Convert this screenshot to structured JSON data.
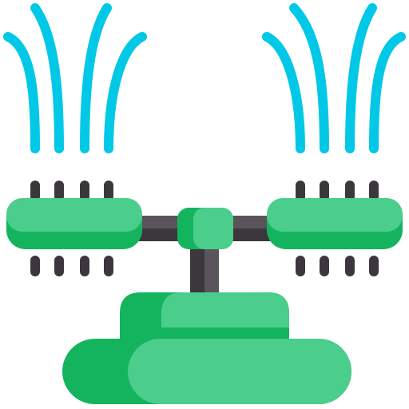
{
  "icon": {
    "name": "garden-sprinkler-icon",
    "colors": {
      "water": "#00c8e6",
      "green_light": "#4bcd8b",
      "green_dark": "#14b45f",
      "metal_dark": "#3c373c",
      "metal_mid": "#5a555a"
    }
  }
}
